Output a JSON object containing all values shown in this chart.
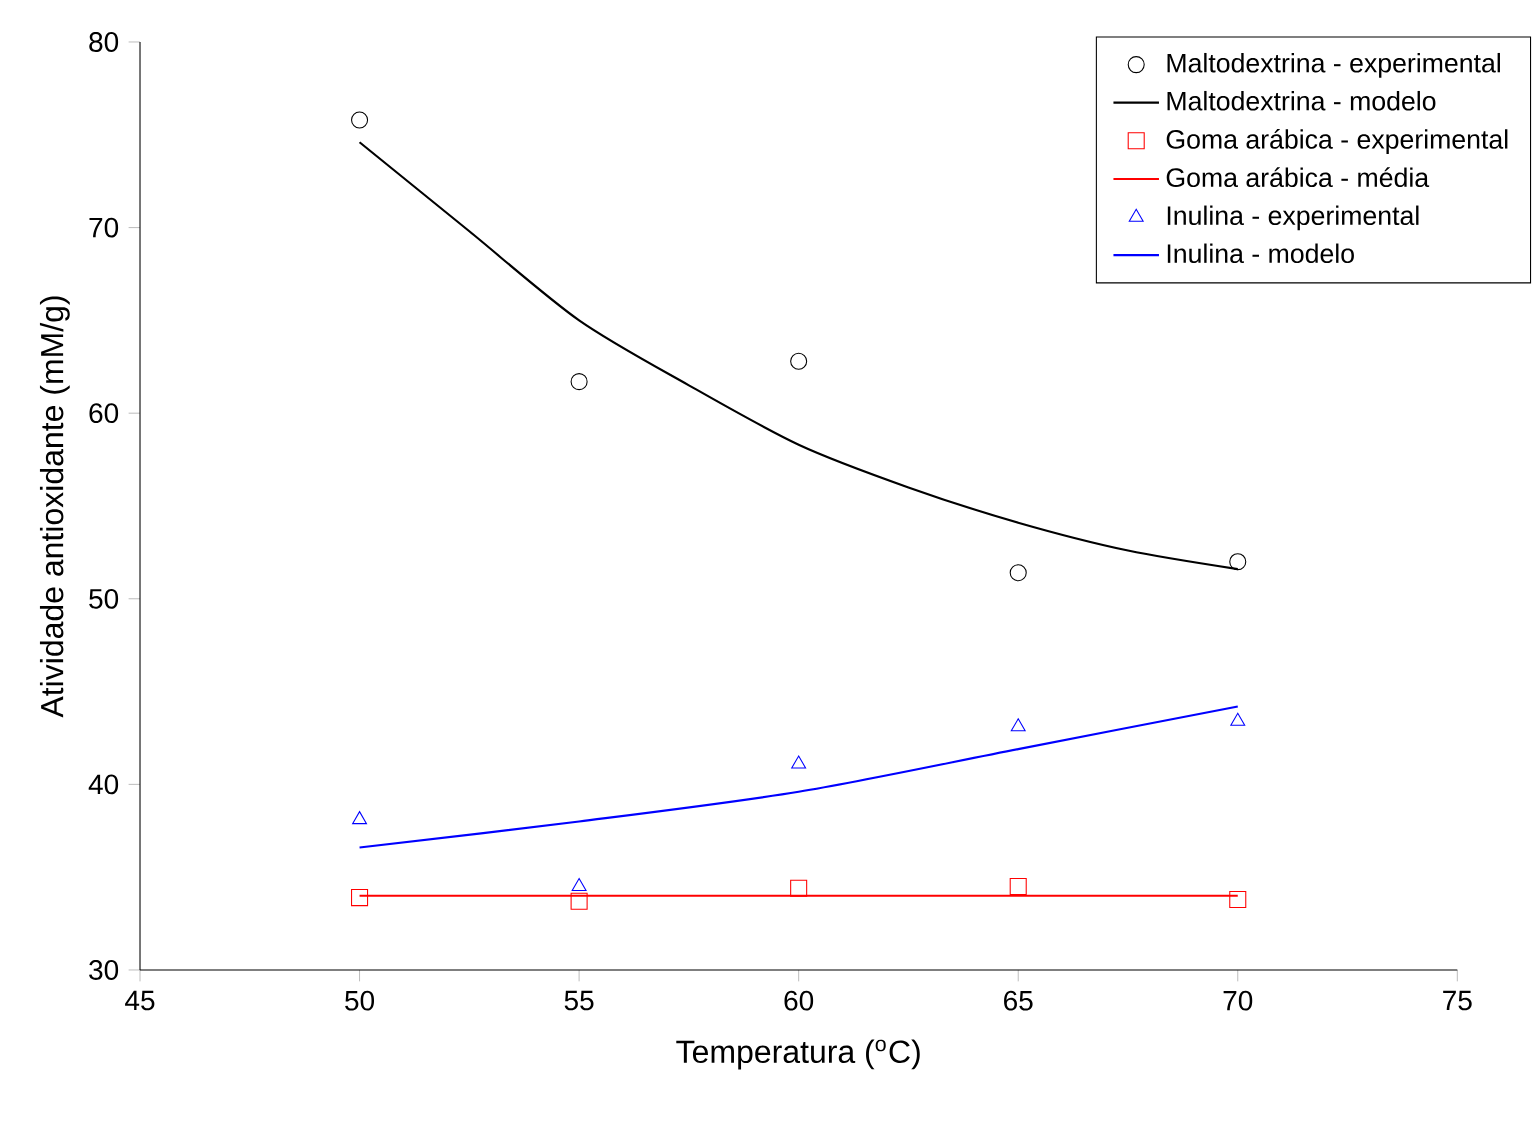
{
  "chart_data": {
    "type": "scatter",
    "xlabel": "Temperatura ($^{o}$C)",
    "ylabel": "Atividade antioxidante (mM/g)",
    "xlim": [
      45,
      75
    ],
    "ylim": [
      30,
      80
    ],
    "xticks": [
      45,
      50,
      55,
      60,
      65,
      70,
      75
    ],
    "yticks": [
      30,
      40,
      50,
      60,
      70,
      80
    ],
    "legend": "top right",
    "series": [
      {
        "name": "Maltodextrina - experimental",
        "marker": "circle",
        "color": "#000000",
        "x": [
          50,
          55,
          60,
          65,
          70
        ],
        "values": [
          75.8,
          61.7,
          62.8,
          51.4,
          52.0
        ]
      },
      {
        "name": "Maltodextrina - modelo",
        "type": "line",
        "marker": "none",
        "color": "#000000",
        "x": [
          50,
          52.5,
          55,
          57.5,
          60,
          62.5,
          65,
          67.5,
          70
        ],
        "values": [
          74.6,
          69.8,
          65.0,
          61.5,
          58.3,
          56.0,
          54.1,
          52.6,
          51.6
        ]
      },
      {
        "name": "Goma arábica - experimental",
        "marker": "square",
        "color": "#ff0000",
        "x": [
          50,
          55,
          60,
          65,
          70
        ],
        "values": [
          33.9,
          33.7,
          34.4,
          34.5,
          33.8
        ]
      },
      {
        "name": "Goma arábica - média",
        "type": "line",
        "marker": "none",
        "color": "#ff0000",
        "x": [
          50,
          70
        ],
        "values": [
          34.0,
          34.0
        ]
      },
      {
        "name": "Inulina - experimental",
        "marker": "triangle",
        "color": "#0000ff",
        "x": [
          50,
          55,
          60,
          65,
          70
        ],
        "values": [
          38.1,
          34.5,
          41.1,
          43.1,
          43.4
        ]
      },
      {
        "name": "Inulina - modelo",
        "type": "line",
        "marker": "none",
        "color": "#0000ff",
        "x": [
          50,
          55,
          60,
          65,
          70
        ],
        "values": [
          36.6,
          38.0,
          39.6,
          41.9,
          44.2
        ]
      }
    ]
  }
}
